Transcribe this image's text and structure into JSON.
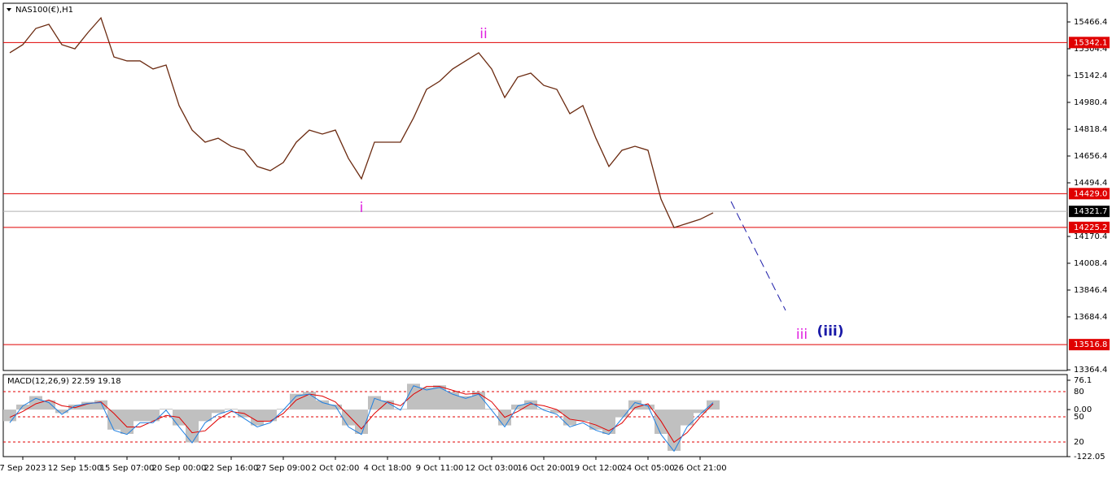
{
  "chart_data": [
    {
      "type": "line",
      "title": "NAS100(€),H1",
      "categories": [
        null,
        "7 Sep 2023",
        null,
        null,
        null,
        "12 Sep 15:00",
        null,
        null,
        null,
        "15 Sep 07:00",
        null,
        null,
        null,
        "20 Sep 00:00",
        null,
        null,
        null,
        "22 Sep 16:00",
        null,
        null,
        null,
        "27 Sep 09:00",
        null,
        null,
        null,
        "2 Oct 02:00",
        null,
        null,
        null,
        "4 Oct 18:00",
        null,
        null,
        null,
        "9 Oct 11:00",
        null,
        null,
        null,
        "12 Oct 03:00",
        null,
        null,
        null,
        "16 Oct 20:00",
        null,
        null,
        null,
        "19 Oct 12:00",
        null,
        null,
        null,
        "24 Oct 05:00",
        null,
        null,
        null,
        "26 Oct 21:00",
        null
      ],
      "series": [
        {
          "name": null,
          "color": "#6b2a10",
          "values": [
            15280,
            15329,
            15427,
            15452,
            15329,
            15304,
            15402,
            15491,
            15255,
            15231,
            15231,
            15182,
            15206,
            14961,
            14813,
            14740,
            14764,
            14715,
            14691,
            14593,
            14568,
            14617,
            14740,
            14813,
            14789,
            14813,
            14642,
            14519,
            14740,
            14740,
            14740,
            14887,
            15059,
            15108,
            15182,
            15231,
            15280,
            15182,
            15010,
            15133,
            15157,
            15083,
            15059,
            14912,
            14961,
            14764,
            14593,
            14691,
            14715,
            14691,
            14396,
            14224,
            14249,
            14274,
            14313
          ]
        }
      ],
      "ylim": [
        13360.4,
        15579.3
      ],
      "yticks": [
        15466.4,
        15304.4,
        15142.4,
        14980.4,
        14818.4,
        14656.4,
        14494.4,
        14170.4,
        14008.4,
        13846.4,
        13684.4,
        13364.4
      ],
      "levels": [
        15342.1,
        {
          "value": 14429,
          "label": "14429.0"
        },
        14225.2,
        13516.8
      ],
      "level_color": "#e00000",
      "last_price": 14321.7,
      "annotations": [
        {
          "text": "ii",
          "color": "#e020e0"
        },
        {
          "text": "i",
          "color": "#e020e0"
        },
        {
          "text": "iii",
          "color": "#e020e0"
        },
        {
          "text": "(iii)",
          "color": "#1a1aa8"
        }
      ]
    },
    {
      "type": "macd",
      "title": "MACD(12,26,9) 22.59 19.18",
      "series": [
        {
          "name": null,
          "color": "#c0c0c0",
          "kind": "histogram",
          "values": [
            -30,
            13,
            35,
            24,
            -9,
            13,
            20,
            24,
            -52,
            -63,
            -30,
            -30,
            2,
            -41,
            -85,
            -30,
            -9,
            2,
            -20,
            -41,
            -30,
            2,
            41,
            46,
            24,
            13,
            -41,
            -63,
            35,
            24,
            2,
            67,
            57,
            63,
            46,
            35,
            46,
            2,
            -41,
            13,
            24,
            2,
            -9,
            -41,
            -30,
            -52,
            -63,
            -20,
            24,
            13,
            -63,
            -107,
            -41,
            -9,
            24
          ]
        },
        {
          "name": null,
          "color": "#e00000",
          "kind": "line",
          "values": [
            -20,
            -5,
            15,
            25,
            10,
            5,
            15,
            20,
            -10,
            -45,
            -45,
            -30,
            -15,
            -20,
            -60,
            -55,
            -25,
            -5,
            -10,
            -30,
            -30,
            -10,
            25,
            40,
            35,
            20,
            -15,
            -50,
            -10,
            20,
            10,
            40,
            60,
            60,
            50,
            40,
            42,
            20,
            -20,
            -5,
            15,
            10,
            0,
            -25,
            -30,
            -40,
            -55,
            -35,
            5,
            15,
            -30,
            -85,
            -60,
            -20,
            15
          ]
        },
        {
          "name": null,
          "color": "#1e7fe0",
          "kind": "line",
          "axis": "y2",
          "values": [
            43,
            63,
            72,
            67,
            53,
            63,
            66,
            67,
            34,
            29,
            43,
            43,
            58,
            38,
            19,
            43,
            53,
            58,
            48,
            38,
            43,
            58,
            75,
            77,
            67,
            63,
            38,
            29,
            72,
            67,
            58,
            87,
            82,
            85,
            77,
            72,
            77,
            58,
            38,
            63,
            67,
            58,
            53,
            38,
            43,
            34,
            29,
            48,
            67,
            63,
            29,
            9,
            38,
            53,
            67
          ]
        }
      ],
      "ylim": [
        -122.05,
        76.1
      ],
      "yticks": [
        76.1,
        {
          "value": 0,
          "label": "0.00"
        },
        -122.05
      ],
      "y2lim": [
        2.6,
        93.6
      ],
      "y2ticks": [
        80,
        50,
        20
      ]
    }
  ]
}
